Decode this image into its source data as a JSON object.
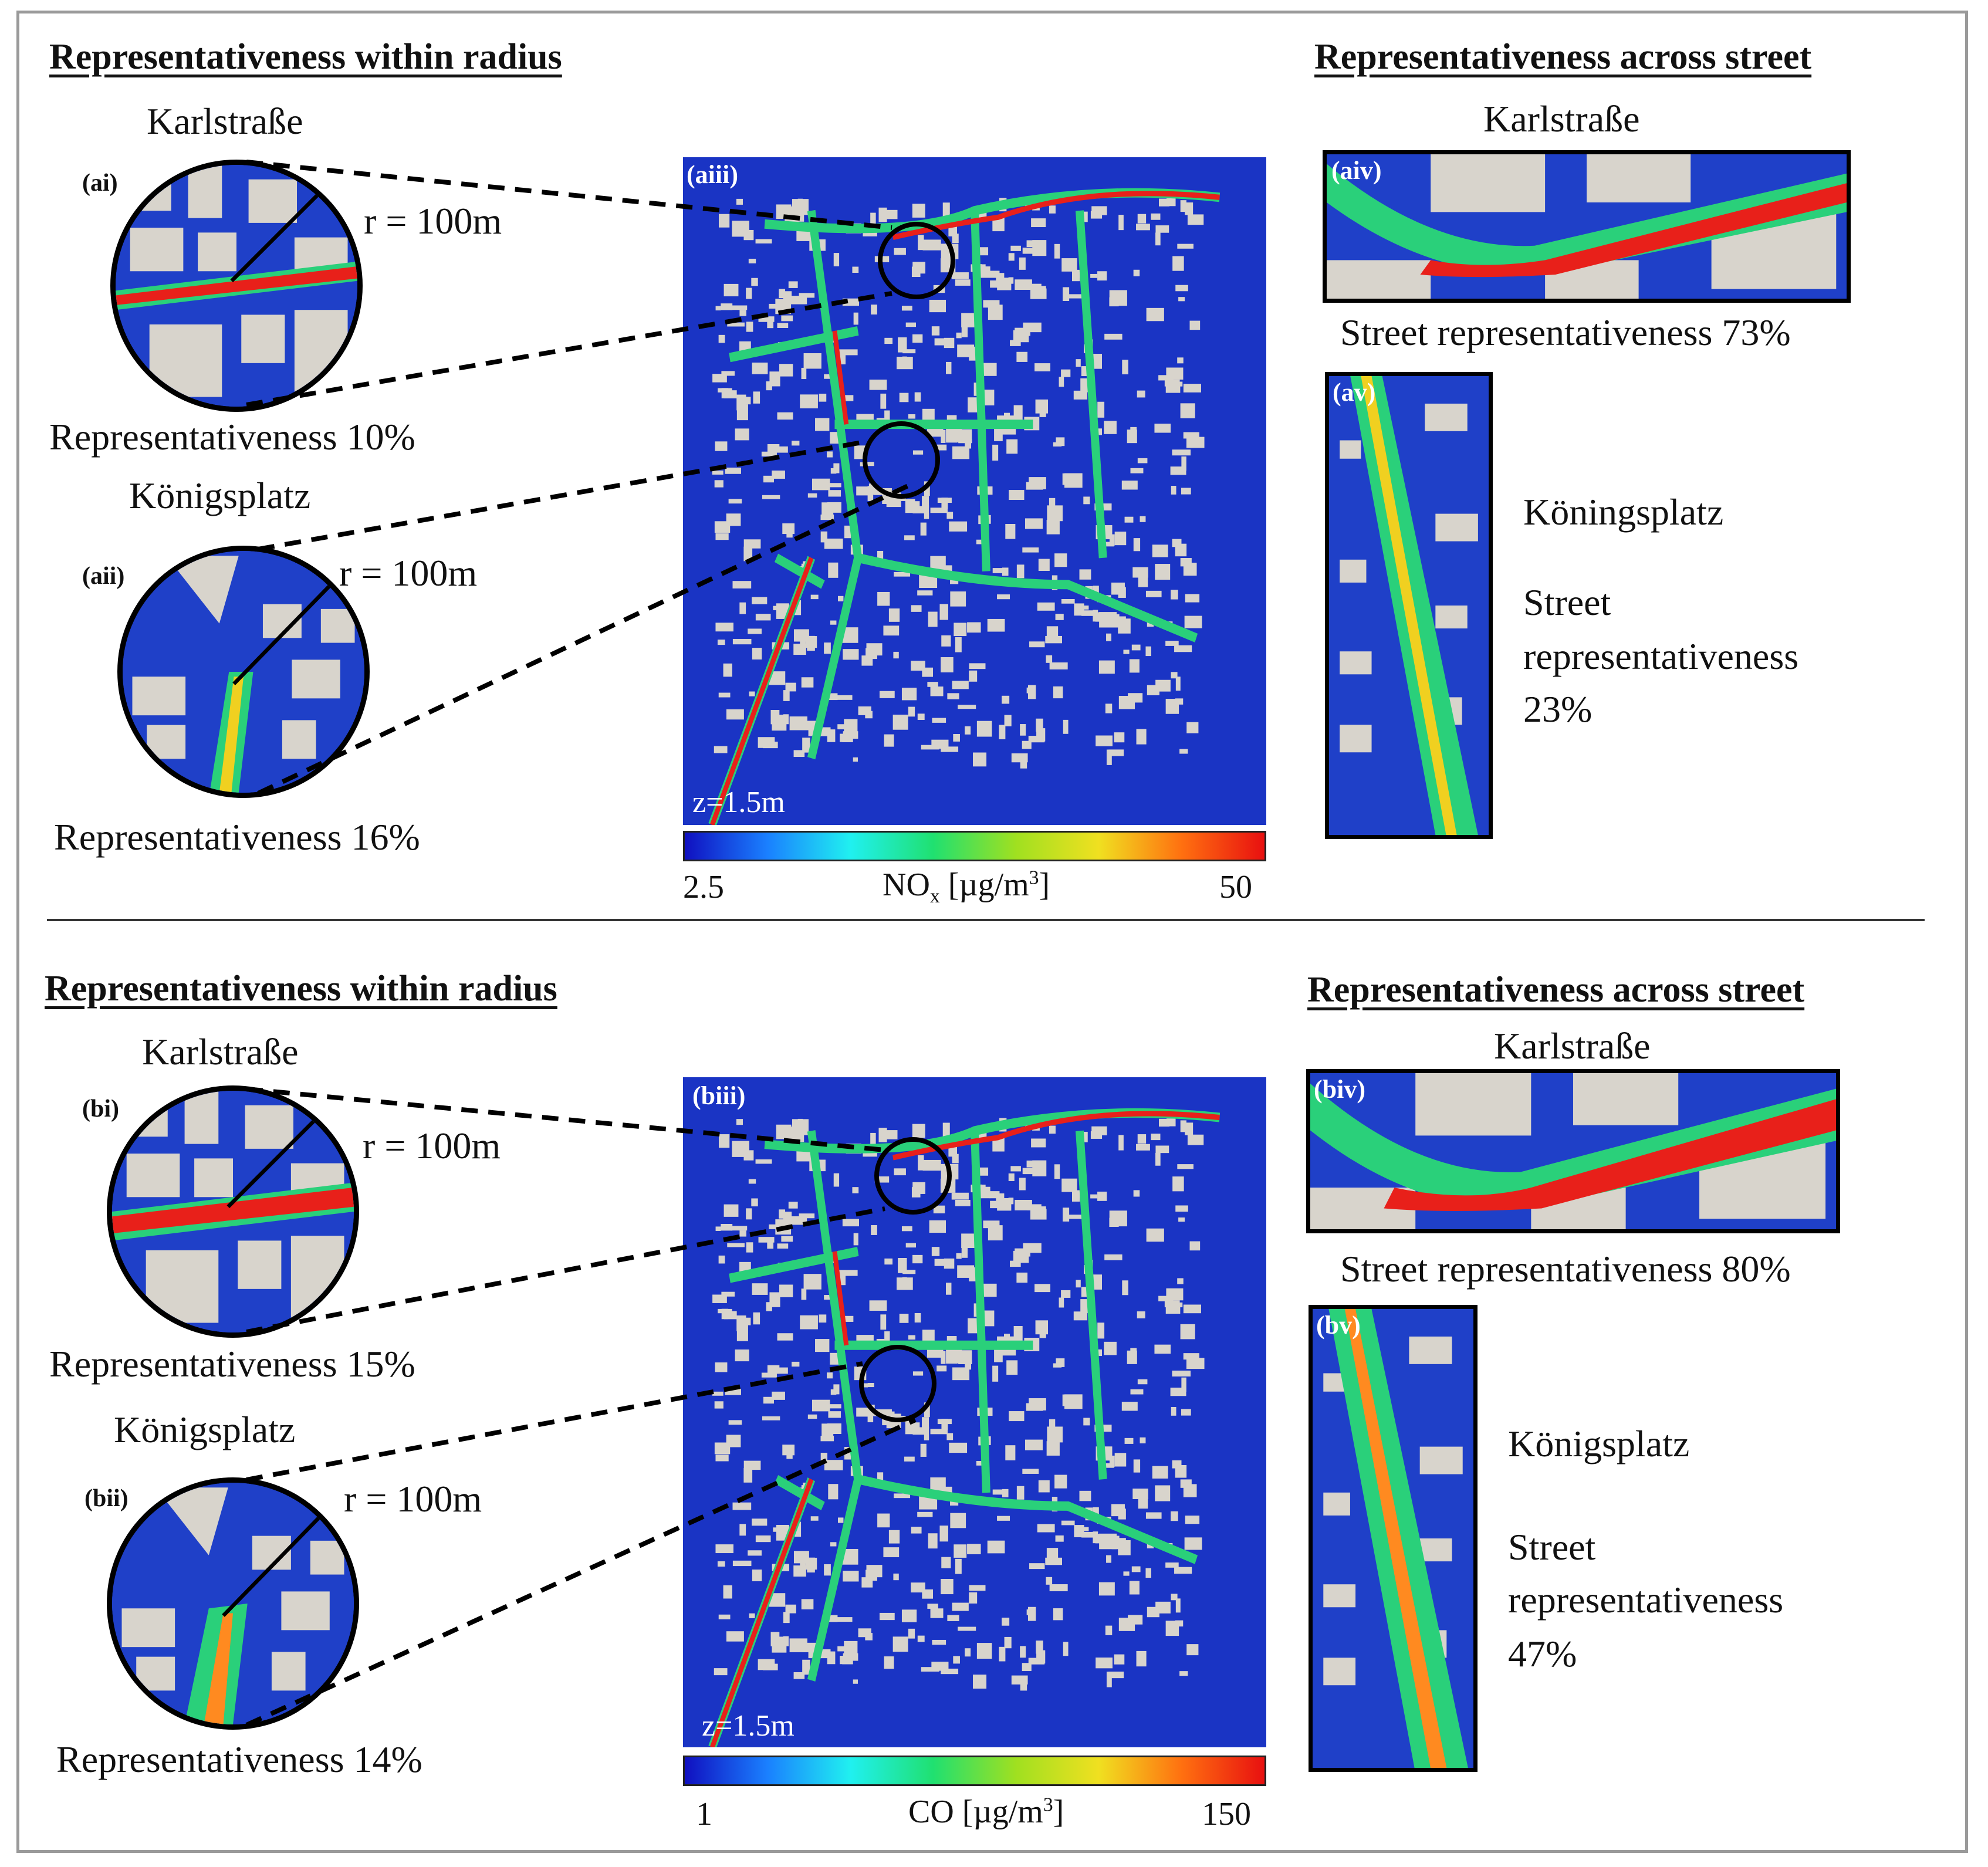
{
  "panel_a": {
    "left_heading": "Representativeness within radius",
    "right_heading": "Representativeness across street",
    "karl": {
      "name": "Karlstraße",
      "tag": "(ai)",
      "radius": "r = 100m",
      "repr": "Representativeness 10%"
    },
    "koenig": {
      "name": "Königsplatz",
      "tag": "(aii)",
      "radius": "r = 100m",
      "repr": "Representativeness 16%"
    },
    "map": {
      "tag": "(aiii)",
      "height_label": "z=1.5m"
    },
    "colorbar": {
      "min": "2.5",
      "max": "50",
      "label_main": "NO",
      "label_sub": "x",
      "label_unit_pre": " [µg/m",
      "label_sup": "3",
      "label_unit_post": "]"
    },
    "street_karl": {
      "name": "Karlstraße",
      "tag": "(aiv)",
      "repr": "Street representativeness 73%"
    },
    "street_koenig": {
      "tag": "(av)",
      "name": "Köningsplatz",
      "line1": "Street",
      "line2": "representativeness",
      "line3": "23%"
    }
  },
  "panel_b": {
    "left_heading": "Representativeness within radius",
    "right_heading": "Representativeness across street",
    "karl": {
      "name": "Karlstraße",
      "tag": "(bi)",
      "radius": "r = 100m",
      "repr": "Representativeness 15%"
    },
    "koenig": {
      "name": "Königsplatz",
      "tag": "(bii)",
      "radius": "r = 100m",
      "repr": "Representativeness 14%"
    },
    "map": {
      "tag": "(biii)",
      "height_label": "z=1.5m"
    },
    "colorbar": {
      "min": "1",
      "max": "150",
      "label_main": "CO",
      "label_unit_pre": " [µg/m",
      "label_sup": "3",
      "label_unit_post": "]"
    },
    "street_karl": {
      "name": "Karlstraße",
      "tag": "(biv)",
      "repr": "Street representativeness 80%"
    },
    "street_koenig": {
      "tag": "(bv)",
      "name": "Königsplatz",
      "line1": "Street",
      "line2": "representativeness",
      "line3": "47%"
    }
  },
  "colors": {
    "field_low": "#1f40c8",
    "building": "#d8d4cc",
    "hot": "#e8201a",
    "mid": "#2ad07a",
    "warm": "#f0d020",
    "frame": "#9a9a9a"
  }
}
